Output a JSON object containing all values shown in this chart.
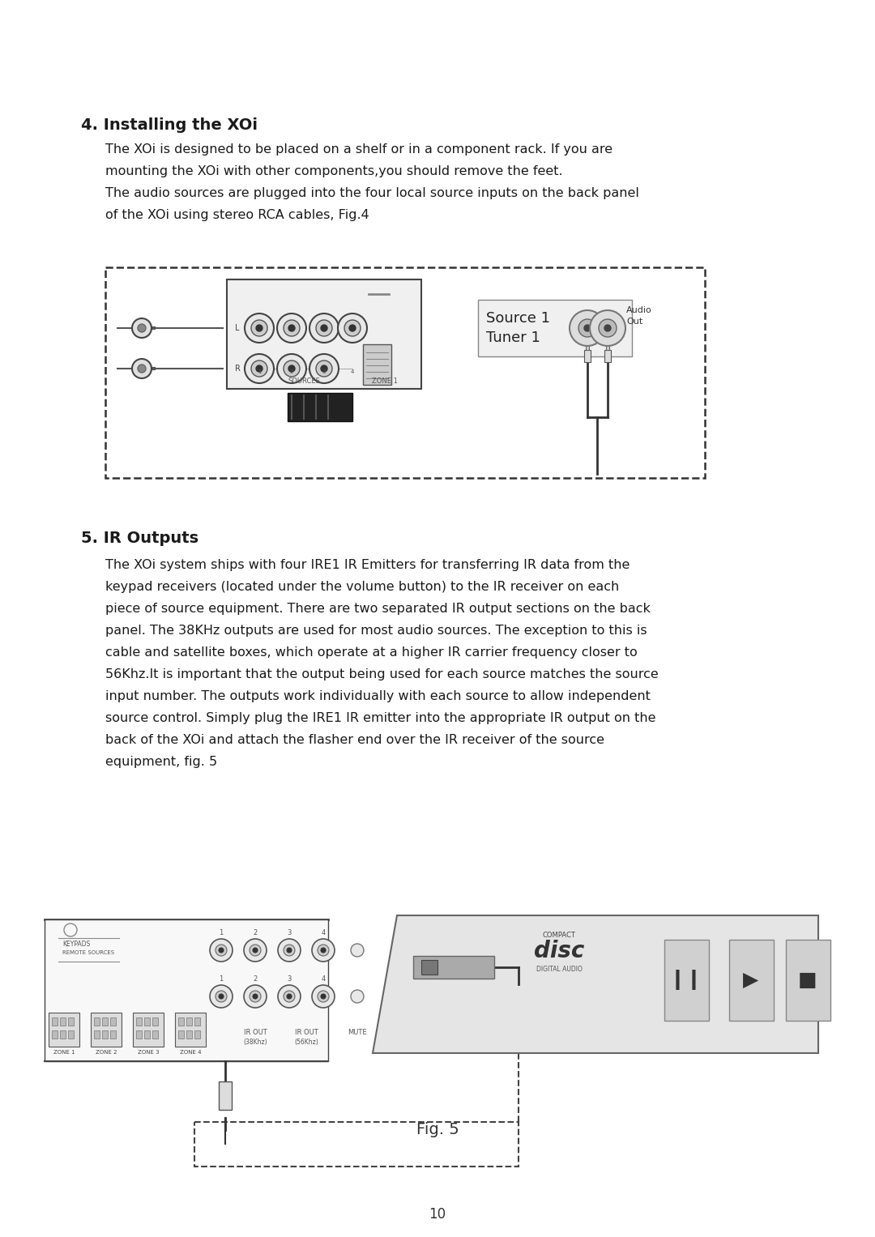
{
  "bg_color": "#ffffff",
  "text_color": "#1a1a1a",
  "section4_title": "4. Installing the XOi",
  "section4_body_line1": "The XOi is designed to be placed on a shelf or in a component rack. If you are",
  "section4_body_line2": "mounting the XOi with other components,you should remove the feet.",
  "section4_body_line3": "The audio sources are plugged into the four local source inputs on the back panel",
  "section4_body_line4": "of the XOi using stereo RCA cables, Fig.4",
  "section5_title": "5. IR Outputs",
  "section5_body": [
    "The XOi system ships with four IRE1 IR Emitters for transferring IR data from the",
    "keypad receivers (located under the volume button) to the IR receiver on each",
    "piece of source equipment. There are two separated IR output sections on the back",
    "panel. The 38KHz outputs are used for most audio sources. The exception to this is",
    "cable and satellite boxes, which operate at a higher IR carrier frequency closer to",
    "56Khz.It is important that the output being used for each source matches the source",
    "input number. The outputs work individually with each source to allow independent",
    "source control. Simply plug the IRE1 IR emitter into the appropriate IR output on the",
    "back of the XOi and attach the flasher end over the IR receiver of the source",
    "equipment, fig. 5"
  ],
  "fig5_caption": "Fig. 5",
  "page_number": "10"
}
